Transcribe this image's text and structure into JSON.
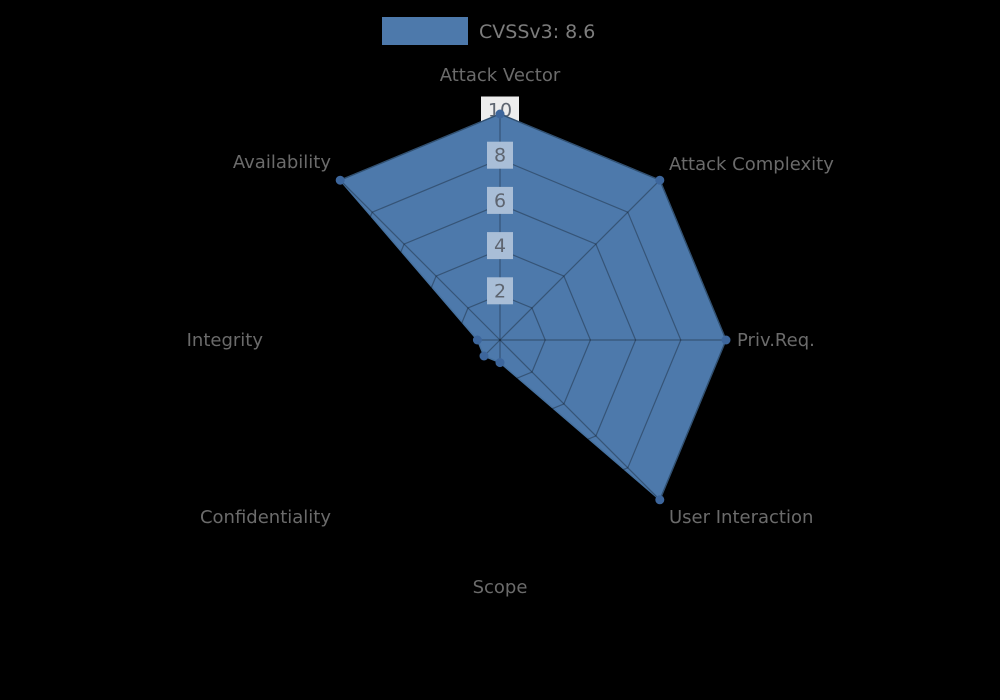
{
  "background_color": "#000000",
  "legend": {
    "label": "CVSSv3: 8.6",
    "swatch_color": "#4d79ab"
  },
  "chart_data": {
    "type": "radar",
    "categories": [
      "Attack Vector",
      "Attack Complexity",
      "Priv.Req.",
      "User Interaction",
      "Scope",
      "Confidentiality",
      "Integrity",
      "Availability"
    ],
    "series": [
      {
        "name": "CVSSv3: 8.6",
        "values": [
          10,
          10,
          10,
          10,
          1,
          1,
          1,
          10
        ]
      }
    ],
    "radial_ticks": [
      2,
      4,
      6,
      8,
      10
    ],
    "rmax": 10,
    "grid_shape": "polygon-web",
    "legend_position": "top-center",
    "styles": {
      "fill_color": "#4d79ab",
      "edge_color": "#46719f",
      "marker_color": "#3d669c",
      "grid_line_color": "rgba(0,0,0,0.30)",
      "category_label_color": "#6b6b6b",
      "tick_text_color": "#5e6570",
      "tick_box_inner_color": "#a9bed7",
      "tick_box_outer_color": "#ededed"
    }
  }
}
